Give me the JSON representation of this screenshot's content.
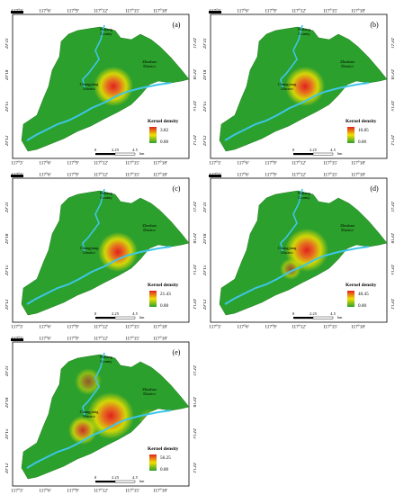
{
  "coords": {
    "top": [
      "117°3'",
      "117°6'",
      "117°9'",
      "117°12'",
      "117°15'",
      "117°18'"
    ],
    "side": [
      "29°21'",
      "29°18'",
      "29°15'",
      "29°12'"
    ]
  },
  "places": {
    "county": [
      "Fuliang",
      "County"
    ],
    "zhushan": [
      "Zhushan",
      "District"
    ],
    "changjiang": [
      "Changjiang",
      "District"
    ]
  },
  "legend": {
    "title": "Kernel density",
    "min": "0.00"
  },
  "scale": {
    "zero": "0",
    "mid": "2.25",
    "end": "4.5",
    "unit": "km"
  },
  "panels": [
    {
      "label": "(a)",
      "max": "3.82"
    },
    {
      "label": "(b)",
      "max": "16.85"
    },
    {
      "label": "(c)",
      "max": "21.43"
    },
    {
      "label": "(d)",
      "max": "40.45"
    },
    {
      "label": "(e)",
      "max": "56.25"
    }
  ],
  "colors": {
    "low": "#2ca02c",
    "mid": "#f0e000",
    "high": "#e0201e",
    "river": "#3ec6e8",
    "frame": "#000000"
  }
}
